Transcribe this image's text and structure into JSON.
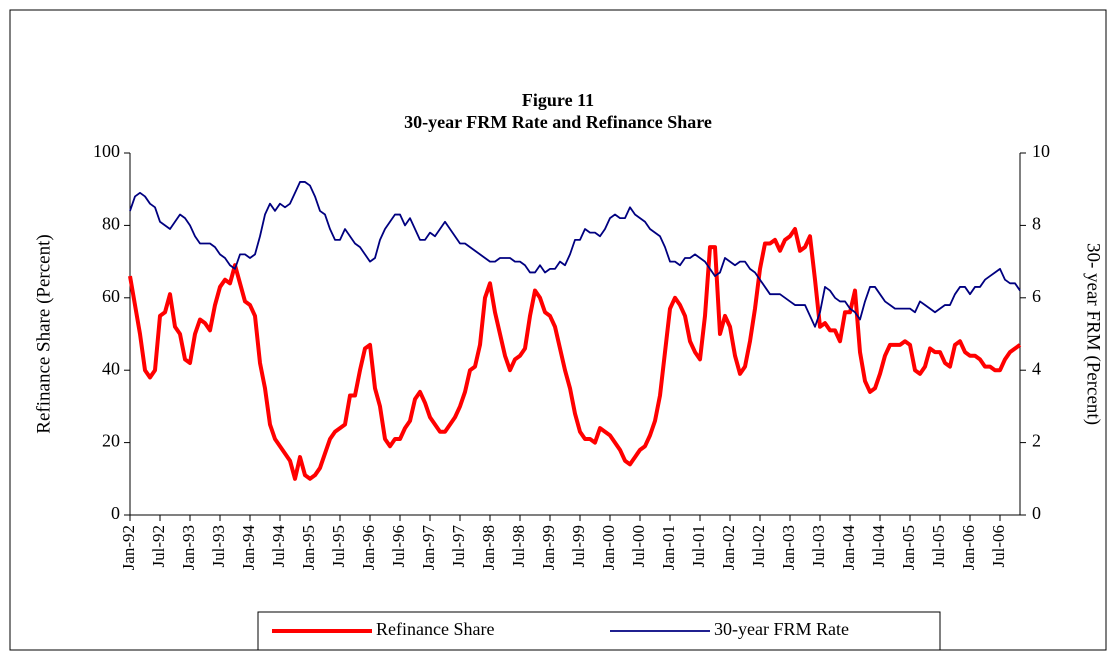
{
  "chart_data": {
    "type": "line",
    "title": "Figure 11",
    "subtitle": "30-year FRM Rate and Refinance Share",
    "ylabel": "Refinance Share (Percent)",
    "y2label": "30- year FRM (Percent)",
    "categories": [
      "Jan-92",
      null,
      null,
      null,
      null,
      null,
      "Jul-92",
      null,
      null,
      null,
      null,
      null,
      "Jan-93",
      null,
      null,
      null,
      null,
      null,
      "Jul-93",
      null,
      null,
      null,
      null,
      null,
      "Jan-94",
      null,
      null,
      null,
      null,
      null,
      "Jul-94",
      null,
      null,
      null,
      null,
      null,
      "Jan-95",
      null,
      null,
      null,
      null,
      null,
      "Jul-95",
      null,
      null,
      null,
      null,
      null,
      "Jan-96",
      null,
      null,
      null,
      null,
      null,
      "Jul-96",
      null,
      null,
      null,
      null,
      null,
      "Jan-97",
      null,
      null,
      null,
      null,
      null,
      "Jul-97",
      null,
      null,
      null,
      null,
      null,
      "Jan-98",
      null,
      null,
      null,
      null,
      null,
      "Jul-98",
      null,
      null,
      null,
      null,
      null,
      "Jan-99",
      null,
      null,
      null,
      null,
      null,
      "Jul-99",
      null,
      null,
      null,
      null,
      null,
      "Jan-00",
      null,
      null,
      null,
      null,
      null,
      "Jul-00",
      null,
      null,
      null,
      null,
      null,
      "Jan-01",
      null,
      null,
      null,
      null,
      null,
      "Jul-01",
      null,
      null,
      null,
      null,
      null,
      "Jan-02",
      null,
      null,
      null,
      null,
      null,
      "Jul-02",
      null,
      null,
      null,
      null,
      null,
      "Jan-03",
      null,
      null,
      null,
      null,
      null,
      "Jul-03",
      null,
      null,
      null,
      null,
      null,
      "Jan-04",
      null,
      null,
      null,
      null,
      null,
      "Jul-04",
      null,
      null,
      null,
      null,
      null,
      "Jan-05",
      null,
      null,
      null,
      null,
      null,
      "Jul-05",
      null,
      null,
      null,
      null,
      null,
      "Jan-06",
      null,
      null,
      null,
      null,
      null,
      "Jul-06",
      null,
      null,
      null,
      null
    ],
    "series": [
      {
        "name": "Refinance Share",
        "color": "#ff0000",
        "axis": "y",
        "values": [
          66,
          58,
          50,
          40,
          38,
          40,
          55,
          56,
          61,
          52,
          50,
          43,
          42,
          50,
          54,
          53,
          51,
          58,
          63,
          65,
          64,
          69,
          64,
          59,
          58,
          55,
          42,
          35,
          25,
          21,
          19,
          17,
          15,
          10,
          16,
          11,
          10,
          11,
          13,
          17,
          21,
          23,
          24,
          25,
          33,
          33,
          40,
          46,
          47,
          35,
          30,
          21,
          19,
          21,
          21,
          24,
          26,
          32,
          34,
          31,
          27,
          25,
          23,
          23,
          25,
          27,
          30,
          34,
          40,
          41,
          47,
          60,
          64,
          56,
          50,
          44,
          40,
          43,
          44,
          46,
          55,
          62,
          60,
          56,
          55,
          52,
          46,
          40,
          35,
          28,
          23,
          21,
          21,
          20,
          24,
          23,
          22,
          20,
          18,
          15,
          14,
          16,
          18,
          19,
          22,
          26,
          33,
          45,
          57,
          60,
          58,
          55,
          48,
          45,
          43,
          55,
          74,
          74,
          50,
          55,
          52,
          44,
          39,
          41,
          48,
          57,
          68,
          75,
          75,
          76,
          73,
          76,
          77,
          79,
          73,
          74,
          77,
          65,
          52,
          53,
          51,
          51,
          48,
          56,
          56,
          62,
          45,
          37,
          34,
          35,
          39,
          44,
          47,
          47,
          47,
          48,
          47,
          40,
          39,
          41,
          46,
          45,
          45,
          42,
          41,
          47,
          48,
          45,
          44,
          44,
          43,
          41,
          41,
          40,
          40,
          43,
          45,
          46,
          47
        ]
      },
      {
        "name": "30-year FRM Rate",
        "color": "#000080",
        "axis": "y2",
        "values": [
          8.4,
          8.8,
          8.9,
          8.8,
          8.6,
          8.5,
          8.1,
          8.0,
          7.9,
          8.1,
          8.3,
          8.2,
          8.0,
          7.7,
          7.5,
          7.5,
          7.5,
          7.4,
          7.2,
          7.1,
          6.9,
          6.8,
          7.2,
          7.2,
          7.1,
          7.2,
          7.7,
          8.3,
          8.6,
          8.4,
          8.6,
          8.5,
          8.6,
          8.9,
          9.2,
          9.2,
          9.1,
          8.8,
          8.4,
          8.3,
          7.9,
          7.6,
          7.6,
          7.9,
          7.7,
          7.5,
          7.4,
          7.2,
          7.0,
          7.1,
          7.6,
          7.9,
          8.1,
          8.3,
          8.3,
          8.0,
          8.2,
          7.9,
          7.6,
          7.6,
          7.8,
          7.7,
          7.9,
          8.1,
          7.9,
          7.7,
          7.5,
          7.5,
          7.4,
          7.3,
          7.2,
          7.1,
          7.0,
          7.0,
          7.1,
          7.1,
          7.1,
          7.0,
          7.0,
          6.9,
          6.7,
          6.7,
          6.9,
          6.7,
          6.8,
          6.8,
          7.0,
          6.9,
          7.2,
          7.6,
          7.6,
          7.9,
          7.8,
          7.8,
          7.7,
          7.9,
          8.2,
          8.3,
          8.2,
          8.2,
          8.5,
          8.3,
          8.2,
          8.1,
          7.9,
          7.8,
          7.7,
          7.4,
          7.0,
          7.0,
          6.9,
          7.1,
          7.1,
          7.2,
          7.1,
          7.0,
          6.8,
          6.6,
          6.7,
          7.1,
          7.0,
          6.9,
          7.0,
          7.0,
          6.8,
          6.7,
          6.5,
          6.3,
          6.1,
          6.1,
          6.1,
          6.0,
          5.9,
          5.8,
          5.8,
          5.8,
          5.5,
          5.2,
          5.6,
          6.3,
          6.2,
          6.0,
          5.9,
          5.9,
          5.7,
          5.6,
          5.4,
          5.9,
          6.3,
          6.3,
          6.1,
          5.9,
          5.8,
          5.7,
          5.7,
          5.7,
          5.7,
          5.6,
          5.9,
          5.8,
          5.7,
          5.6,
          5.7,
          5.8,
          5.8,
          6.1,
          6.3,
          6.3,
          6.1,
          6.3,
          6.3,
          6.5,
          6.6,
          6.7,
          6.8,
          6.5,
          6.4,
          6.4,
          6.2
        ]
      }
    ],
    "ylim": [
      0,
      100
    ],
    "yticks": [
      0,
      20,
      40,
      60,
      80,
      100
    ],
    "y2lim": [
      0,
      10
    ],
    "y2ticks": [
      0,
      2,
      4,
      6,
      8,
      10
    ],
    "legend": "bottom"
  }
}
